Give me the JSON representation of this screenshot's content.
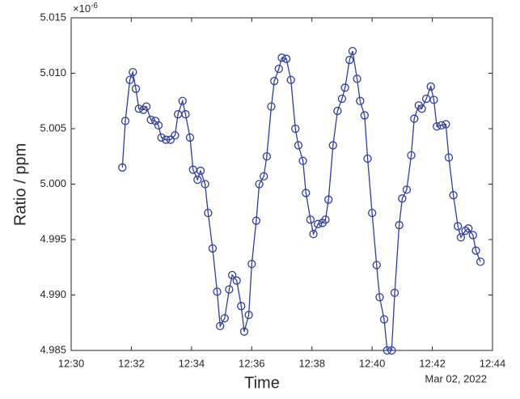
{
  "chart_data": {
    "type": "line",
    "xlabel": "Time",
    "ylabel": "Ratio / ppm",
    "x_date_label": "Mar 02, 2022",
    "y_exponent": {
      "base": "×10",
      "power": "-6"
    },
    "xlim": [
      "12:30",
      "12:44"
    ],
    "xticks": [
      "12:30",
      "12:32",
      "12:34",
      "12:36",
      "12:38",
      "12:40",
      "12:42",
      "12:44"
    ],
    "ylim": [
      4.985,
      5.015
    ],
    "yticks": [
      4.985,
      {
        "value": 4.99,
        "label": "4.990"
      },
      4.995,
      {
        "value": 5,
        "label": "5.000"
      },
      5.005,
      {
        "value": 5.01,
        "label": "5.010"
      },
      5.015
    ],
    "grid": false,
    "x": [
      "12:31:42",
      "12:31:48",
      "12:31:57",
      "12:32:03",
      "12:32:09",
      "12:32:15",
      "12:32:24",
      "12:32:30",
      "12:32:39",
      "12:32:48",
      "12:32:54",
      "12:33:00",
      "12:33:09",
      "12:33:18",
      "12:33:27",
      "12:33:33",
      "12:33:42",
      "12:33:48",
      "12:33:57",
      "12:34:03",
      "12:34:12",
      "12:34:18",
      "12:34:27",
      "12:34:33",
      "12:34:42",
      "12:34:51",
      "12:34:57",
      "12:35:06",
      "12:35:15",
      "12:35:21",
      "12:35:30",
      "12:35:39",
      "12:35:45",
      "12:35:54",
      "12:36:00",
      "12:36:09",
      "12:36:15",
      "12:36:24",
      "12:36:30",
      "12:36:39",
      "12:36:45",
      "12:36:54",
      "12:37:00",
      "12:37:09",
      "12:37:18",
      "12:37:27",
      "12:37:33",
      "12:37:42",
      "12:37:48",
      "12:37:57",
      "12:38:03",
      "12:38:12",
      "12:38:21",
      "12:38:27",
      "12:38:33",
      "12:38:42",
      "12:38:51",
      "12:39:00",
      "12:39:06",
      "12:39:15",
      "12:39:21",
      "12:39:30",
      "12:39:36",
      "12:39:45",
      "12:39:51",
      "12:40:00",
      "12:40:09",
      "12:40:15",
      "12:40:24",
      "12:40:30",
      "12:40:39",
      "12:40:45",
      "12:40:54",
      "12:41:00",
      "12:41:09",
      "12:41:18",
      "12:41:24",
      "12:41:33",
      "12:41:39",
      "12:41:48",
      "12:41:57",
      "12:42:03",
      "12:42:09",
      "12:42:18",
      "12:42:27",
      "12:42:33",
      "12:42:42",
      "12:42:51",
      "12:42:57",
      "12:43:06",
      "12:43:12",
      "12:43:21",
      "12:43:27",
      "12:43:36"
    ],
    "series": [
      {
        "color": "#2f3f9f",
        "values": [
          5.0015,
          5.0057,
          5.0094,
          5.0101,
          5.0086,
          5.0068,
          5.0067,
          5.007,
          5.0058,
          5.0057,
          5.0053,
          5.0042,
          5.004,
          5.004,
          5.0044,
          5.0063,
          5.0075,
          5.0063,
          5.0042,
          5.0013,
          5.0004,
          5.0012,
          5.0,
          4.9974,
          4.9942,
          4.9903,
          4.9872,
          4.9879,
          4.9905,
          4.9918,
          4.9913,
          4.989,
          4.9867,
          4.9882,
          4.9928,
          4.9967,
          5.0,
          5.0007,
          5.0025,
          5.007,
          5.0093,
          5.0104,
          5.0114,
          5.0113,
          5.0094,
          5.005,
          5.0035,
          5.0021,
          4.9992,
          4.9968,
          4.9955,
          4.9964,
          4.9965,
          4.9968,
          4.9986,
          5.0035,
          5.0066,
          5.0077,
          5.0087,
          5.0112,
          5.012,
          5.0095,
          5.0075,
          5.0062,
          5.0023,
          4.9974,
          4.9927,
          4.9898,
          4.9878,
          4.985,
          4.985,
          4.9902,
          4.9963,
          4.9987,
          4.9995,
          5.0026,
          5.0059,
          5.0071,
          5.0068,
          5.0077,
          5.0088,
          5.0076,
          5.0052,
          5.0053,
          5.0054,
          5.0024,
          4.999,
          4.9962,
          4.9952,
          4.9958,
          4.996,
          4.9954,
          4.994,
          4.993
        ]
      }
    ]
  }
}
